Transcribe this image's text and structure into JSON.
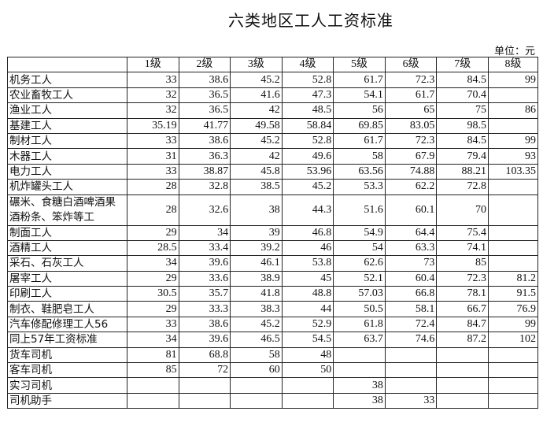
{
  "title": "六类地区工人工资标准",
  "unit": "单位：元",
  "headers": [
    "",
    "1级",
    "2级",
    "3级",
    "4级",
    "5级",
    "6级",
    "7级",
    "8级"
  ],
  "rows": [
    {
      "name": "机务工人",
      "values": [
        "33",
        "38.6",
        "45.2",
        "52.8",
        "61.7",
        "72.3",
        "84.5",
        "99"
      ]
    },
    {
      "name": "农业畜牧工人",
      "values": [
        "32",
        "36.5",
        "41.6",
        "47.3",
        "54.1",
        "61.7",
        "70.4",
        ""
      ]
    },
    {
      "name": "渔业工人",
      "values": [
        "32",
        "36.5",
        "42",
        "48.5",
        "56",
        "65",
        "75",
        "86"
      ]
    },
    {
      "name": "基建工人",
      "values": [
        "35.19",
        "41.77",
        "49.58",
        "58.84",
        "69.85",
        "83.05",
        "98.5",
        ""
      ]
    },
    {
      "name": "制材工人",
      "values": [
        "33",
        "38.6",
        "45.2",
        "52.8",
        "61.7",
        "72.3",
        "84.5",
        "99"
      ]
    },
    {
      "name": "木器工人",
      "values": [
        "31",
        "36.3",
        "42",
        "49.6",
        "58",
        "67.9",
        "79.4",
        "93"
      ]
    },
    {
      "name": "电力工人",
      "values": [
        "33",
        "38.87",
        "45.8",
        "53.96",
        "63.56",
        "74.88",
        "88.21",
        "103.35"
      ]
    },
    {
      "name": "机炸罐头工人",
      "values": [
        "28",
        "32.8",
        "38.5",
        "45.2",
        "53.3",
        "62.2",
        "72.8",
        ""
      ]
    },
    {
      "name": "碾米、食糖白酒啤酒果酒粉条、笨炸等工",
      "values": [
        "28",
        "32.6",
        "38",
        "44.3",
        "51.6",
        "60.1",
        "70",
        ""
      ]
    },
    {
      "name": "制面工人",
      "values": [
        "29",
        "34",
        "39",
        "46.8",
        "54.9",
        "64.4",
        "75.4",
        ""
      ]
    },
    {
      "name": "酒精工人",
      "values": [
        "28.5",
        "33.4",
        "39.2",
        "46",
        "54",
        "63.3",
        "74.1",
        ""
      ]
    },
    {
      "name": "采石、石灰工人",
      "values": [
        "34",
        "39.6",
        "46.1",
        "53.8",
        "62.6",
        "73",
        "85",
        ""
      ]
    },
    {
      "name": "屠宰工人",
      "values": [
        "29",
        "33.6",
        "38.9",
        "45",
        "52.1",
        "60.4",
        "72.3",
        "81.2"
      ]
    },
    {
      "name": "印刷工人",
      "values": [
        "30.5",
        "35.7",
        "41.8",
        "48.8",
        "57.03",
        "66.8",
        "78.1",
        "91.5"
      ]
    },
    {
      "name": "制衣、鞋肥皂工人",
      "values": [
        "29",
        "33.3",
        "38.3",
        "44",
        "50.5",
        "58.1",
        "66.7",
        "76.9"
      ]
    },
    {
      "name": "汽车修配修理工人56",
      "values": [
        "33",
        "38.6",
        "45.2",
        "52.9",
        "61.8",
        "72.4",
        "84.7",
        "99"
      ]
    },
    {
      "name": "同上57年工资标准",
      "values": [
        "34",
        "39.6",
        "46.5",
        "54.5",
        "63.7",
        "74.6",
        "87.2",
        "102"
      ]
    },
    {
      "name": "货车司机",
      "values": [
        "81",
        "68.8",
        "58",
        "48",
        "",
        "",
        "",
        ""
      ]
    },
    {
      "name": "客车司机",
      "values": [
        "85",
        "72",
        "60",
        "50",
        "",
        "",
        "",
        ""
      ]
    },
    {
      "name": "实习司机",
      "values": [
        "",
        "",
        "",
        "",
        "38",
        "",
        "",
        ""
      ]
    },
    {
      "name": "司机助手",
      "values": [
        "",
        "",
        "",
        "",
        "38",
        "33",
        "",
        ""
      ]
    }
  ]
}
